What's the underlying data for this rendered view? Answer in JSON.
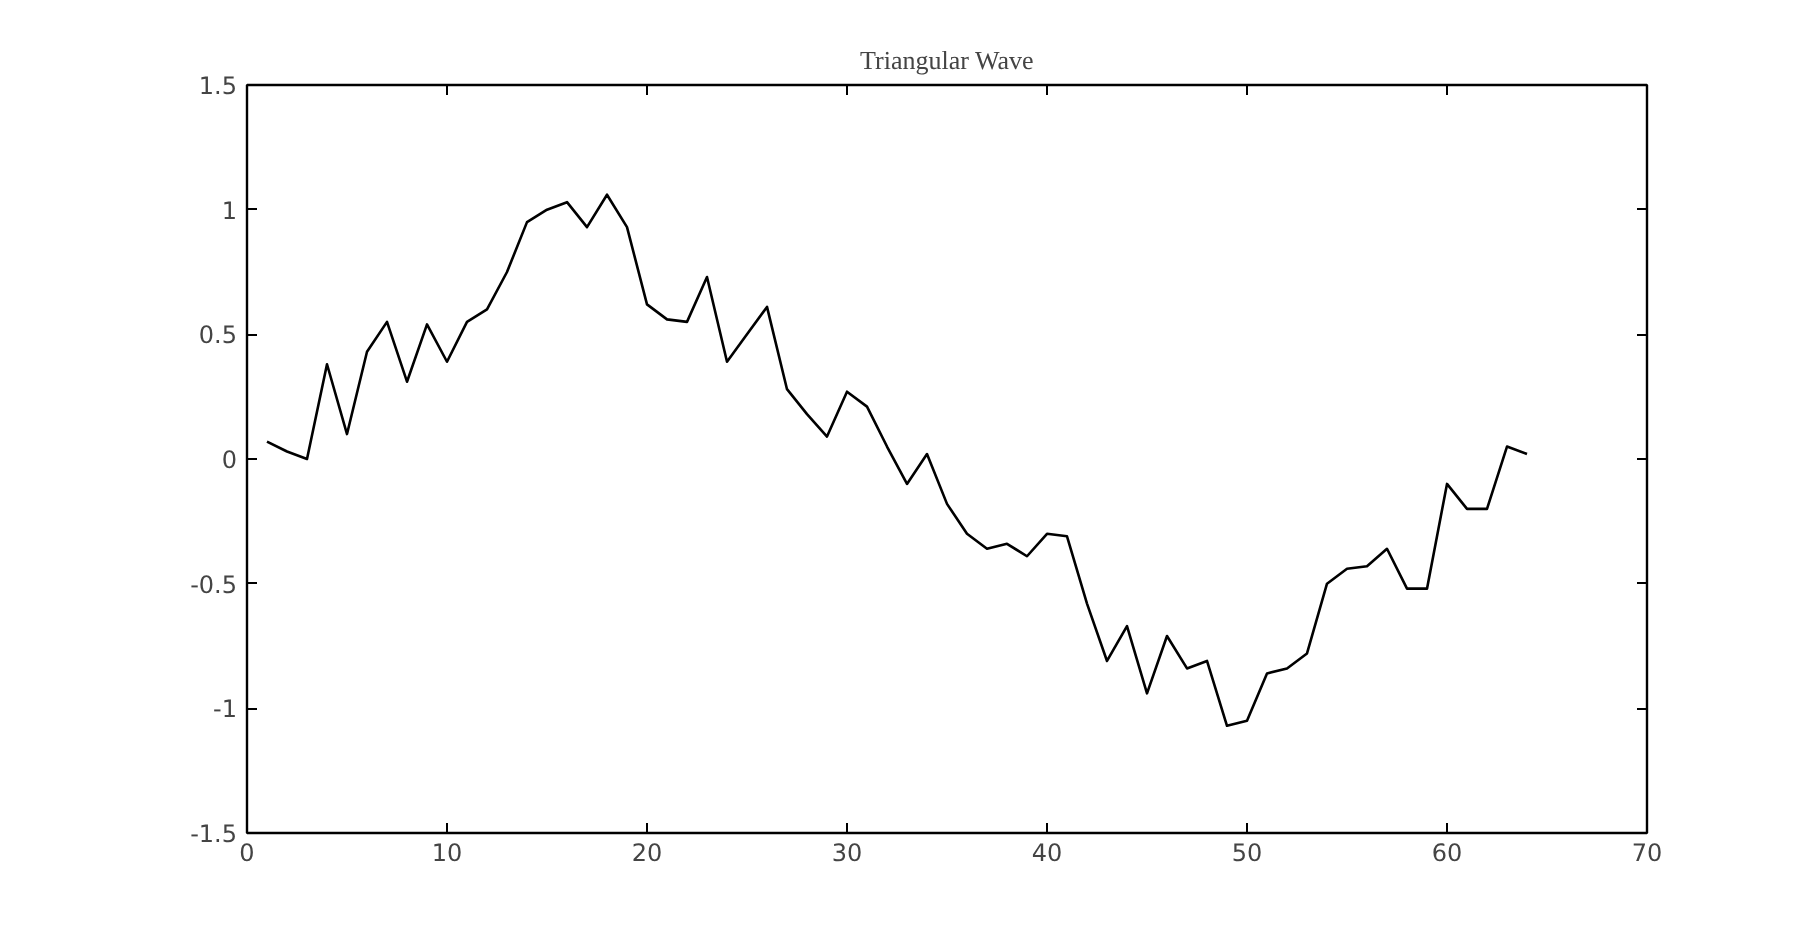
{
  "chart_data": {
    "type": "line",
    "title": "Triangular Wave",
    "x": [
      1,
      2,
      3,
      4,
      5,
      6,
      7,
      8,
      9,
      10,
      11,
      12,
      13,
      14,
      15,
      16,
      17,
      18,
      19,
      20,
      21,
      22,
      23,
      24,
      25,
      26,
      27,
      28,
      29,
      30,
      31,
      32,
      33,
      34,
      35,
      36,
      37,
      38,
      39,
      40,
      41,
      42,
      43,
      44,
      45,
      46,
      47,
      48,
      49,
      50,
      51,
      52,
      53,
      54,
      55,
      56,
      57,
      58,
      59,
      60,
      61,
      62,
      63,
      64
    ],
    "series": [
      {
        "color": "#000000",
        "values": [
          0.07,
          0.03,
          0.0,
          0.38,
          0.1,
          0.43,
          0.55,
          0.31,
          0.54,
          0.39,
          0.55,
          0.6,
          0.75,
          0.95,
          1.0,
          1.03,
          0.93,
          1.06,
          0.93,
          0.62,
          0.56,
          0.55,
          0.73,
          0.39,
          0.5,
          0.61,
          0.28,
          0.18,
          0.09,
          0.27,
          0.21,
          0.05,
          -0.1,
          0.02,
          -0.18,
          -0.3,
          -0.36,
          -0.34,
          -0.39,
          -0.3,
          -0.31,
          -0.58,
          -0.81,
          -0.67,
          -0.94,
          -0.71,
          -0.84,
          -0.81,
          -1.07,
          -1.05,
          -0.86,
          -0.84,
          -0.78,
          -0.5,
          -0.44,
          -0.43,
          -0.36,
          -0.52,
          -0.52,
          -0.1,
          -0.2,
          -0.2,
          0.05,
          0.02
        ]
      }
    ],
    "xlim": [
      0,
      70
    ],
    "xticks": [
      0,
      10,
      20,
      30,
      40,
      50,
      60,
      70
    ],
    "ylim": [
      -1.5,
      1.5
    ],
    "yticks": [
      -1.5,
      -1,
      -0.5,
      0,
      0.5,
      1,
      1.5
    ],
    "grid": false,
    "marker": "none",
    "line_style": "solid"
  }
}
